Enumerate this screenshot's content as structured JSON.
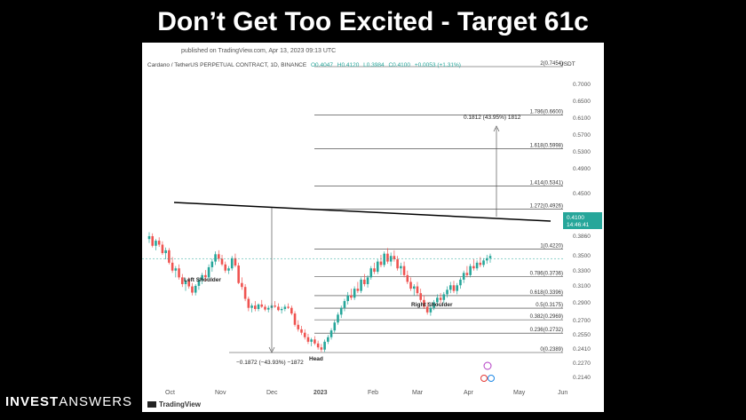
{
  "header": {
    "title": "Don’t Get Too Excited - Target 61c"
  },
  "chart_header": {
    "published": "published on TradingView.com, Apr 13, 2023 09:13 UTC",
    "symbol": "Cardano / TetherUS PERPETUAL CONTRACT, 1D, BINANCE",
    "o": "O0.4047",
    "h": "H0.4120",
    "l": "L0.3984",
    "c": "C0.4100",
    "chg": "+0.0053 (+1.31%)",
    "currency": "USDT"
  },
  "chart_data": {
    "type": "candlestick",
    "x_ticks": [
      "Oct",
      "Nov",
      "Dec",
      "2023",
      "Feb",
      "Mar",
      "Apr",
      "May",
      "Jun"
    ],
    "y_ticks": [
      "0.7000",
      "0.6500",
      "0.6100",
      "0.5700",
      "0.5300",
      "0.4900",
      "0.4500",
      "0.3860",
      "0.3500",
      "0.3300",
      "0.3100",
      "0.2900",
      "0.2700",
      "0.2550",
      "0.2410",
      "0.2270",
      "0.2140"
    ],
    "current_price": "0.4100",
    "countdown": "14:46:41",
    "fib_levels": [
      {
        "label": "2(0.7454)",
        "value": 0.7454
      },
      {
        "label": "1.786(0.6600)",
        "value": 0.66
      },
      {
        "label": "1.618(0.5998)",
        "value": 0.5998
      },
      {
        "label": "1.414(0.5341)",
        "value": 0.5341
      },
      {
        "label": "1.272(0.4926)",
        "value": 0.4926
      },
      {
        "label": "1(0.4220)",
        "value": 0.422
      },
      {
        "label": "0.786(0.3736)",
        "value": 0.3736
      },
      {
        "label": "0.618(0.3396)",
        "value": 0.3396
      },
      {
        "label": "0.5(0.3175)",
        "value": 0.3175
      },
      {
        "label": "0.382(0.2969)",
        "value": 0.2969
      },
      {
        "label": "0.236(0.2732)",
        "value": 0.2732
      },
      {
        "label": "0(0.2389)",
        "value": 0.2389
      }
    ],
    "annotations": {
      "left_shoulder": "Left Shoulder",
      "head": "Head",
      "right_shoulder": "Right Shoulder",
      "measure_down": "−0.1872 (−43.93%) −1872",
      "measure_up": "0.1812 (43.95%) 1812"
    },
    "candles": [
      [
        0.44,
        0.452,
        0.433,
        0.445
      ],
      [
        0.445,
        0.45,
        0.425,
        0.428
      ],
      [
        0.428,
        0.44,
        0.42,
        0.437
      ],
      [
        0.437,
        0.443,
        0.426,
        0.43
      ],
      [
        0.43,
        0.436,
        0.412,
        0.415
      ],
      [
        0.415,
        0.425,
        0.404,
        0.42
      ],
      [
        0.42,
        0.424,
        0.395,
        0.398
      ],
      [
        0.398,
        0.408,
        0.38,
        0.384
      ],
      [
        0.384,
        0.392,
        0.372,
        0.388
      ],
      [
        0.388,
        0.395,
        0.368,
        0.372
      ],
      [
        0.372,
        0.378,
        0.355,
        0.36
      ],
      [
        0.36,
        0.37,
        0.348,
        0.366
      ],
      [
        0.366,
        0.372,
        0.352,
        0.356
      ],
      [
        0.356,
        0.362,
        0.34,
        0.345
      ],
      [
        0.345,
        0.36,
        0.34,
        0.357
      ],
      [
        0.357,
        0.37,
        0.35,
        0.367
      ],
      [
        0.367,
        0.38,
        0.36,
        0.376
      ],
      [
        0.376,
        0.385,
        0.365,
        0.372
      ],
      [
        0.372,
        0.395,
        0.368,
        0.39
      ],
      [
        0.39,
        0.405,
        0.382,
        0.4
      ],
      [
        0.4,
        0.418,
        0.394,
        0.413
      ],
      [
        0.413,
        0.42,
        0.4,
        0.405
      ],
      [
        0.405,
        0.412,
        0.392,
        0.395
      ],
      [
        0.395,
        0.4,
        0.38,
        0.384
      ],
      [
        0.384,
        0.392,
        0.378,
        0.388
      ],
      [
        0.388,
        0.41,
        0.384,
        0.406
      ],
      [
        0.406,
        0.414,
        0.39,
        0.393
      ],
      [
        0.393,
        0.398,
        0.36,
        0.362
      ],
      [
        0.362,
        0.372,
        0.35,
        0.355
      ],
      [
        0.355,
        0.36,
        0.33,
        0.334
      ],
      [
        0.334,
        0.338,
        0.312,
        0.318
      ],
      [
        0.318,
        0.326,
        0.31,
        0.322
      ],
      [
        0.322,
        0.33,
        0.312,
        0.316
      ],
      [
        0.316,
        0.326,
        0.312,
        0.324
      ],
      [
        0.324,
        0.332,
        0.318,
        0.32
      ],
      [
        0.32,
        0.324,
        0.312,
        0.315
      ],
      [
        0.315,
        0.322,
        0.31,
        0.318
      ],
      [
        0.318,
        0.326,
        0.314,
        0.322
      ],
      [
        0.322,
        0.33,
        0.318,
        0.32
      ],
      [
        0.32,
        0.326,
        0.312,
        0.314
      ],
      [
        0.314,
        0.32,
        0.308,
        0.316
      ],
      [
        0.316,
        0.324,
        0.312,
        0.32
      ],
      [
        0.32,
        0.326,
        0.316,
        0.318
      ],
      [
        0.318,
        0.322,
        0.305,
        0.308
      ],
      [
        0.308,
        0.312,
        0.285,
        0.288
      ],
      [
        0.288,
        0.296,
        0.276,
        0.28
      ],
      [
        0.28,
        0.286,
        0.27,
        0.274
      ],
      [
        0.274,
        0.28,
        0.262,
        0.266
      ],
      [
        0.266,
        0.272,
        0.254,
        0.258
      ],
      [
        0.258,
        0.265,
        0.25,
        0.262
      ],
      [
        0.262,
        0.268,
        0.252,
        0.255
      ],
      [
        0.255,
        0.26,
        0.244,
        0.248
      ],
      [
        0.248,
        0.254,
        0.24,
        0.244
      ],
      [
        0.244,
        0.262,
        0.24,
        0.258
      ],
      [
        0.258,
        0.27,
        0.254,
        0.266
      ],
      [
        0.266,
        0.282,
        0.262,
        0.278
      ],
      [
        0.278,
        0.296,
        0.274,
        0.292
      ],
      [
        0.292,
        0.31,
        0.288,
        0.306
      ],
      [
        0.306,
        0.322,
        0.3,
        0.318
      ],
      [
        0.318,
        0.334,
        0.312,
        0.33
      ],
      [
        0.33,
        0.346,
        0.324,
        0.34
      ],
      [
        0.34,
        0.352,
        0.332,
        0.336
      ],
      [
        0.336,
        0.356,
        0.332,
        0.352
      ],
      [
        0.352,
        0.364,
        0.344,
        0.348
      ],
      [
        0.348,
        0.372,
        0.344,
        0.368
      ],
      [
        0.368,
        0.378,
        0.356,
        0.36
      ],
      [
        0.36,
        0.376,
        0.354,
        0.372
      ],
      [
        0.372,
        0.392,
        0.368,
        0.388
      ],
      [
        0.388,
        0.398,
        0.378,
        0.382
      ],
      [
        0.382,
        0.404,
        0.378,
        0.4
      ],
      [
        0.4,
        0.412,
        0.39,
        0.394
      ],
      [
        0.394,
        0.418,
        0.39,
        0.414
      ],
      [
        0.414,
        0.424,
        0.396,
        0.4
      ],
      [
        0.4,
        0.416,
        0.392,
        0.41
      ],
      [
        0.41,
        0.42,
        0.4,
        0.404
      ],
      [
        0.404,
        0.41,
        0.384,
        0.388
      ],
      [
        0.388,
        0.398,
        0.376,
        0.392
      ],
      [
        0.392,
        0.4,
        0.372,
        0.376
      ],
      [
        0.376,
        0.384,
        0.36,
        0.364
      ],
      [
        0.364,
        0.372,
        0.348,
        0.352
      ],
      [
        0.352,
        0.36,
        0.34,
        0.356
      ],
      [
        0.356,
        0.364,
        0.34,
        0.344
      ],
      [
        0.344,
        0.352,
        0.328,
        0.332
      ],
      [
        0.332,
        0.34,
        0.316,
        0.32
      ],
      [
        0.32,
        0.328,
        0.306,
        0.31
      ],
      [
        0.31,
        0.324,
        0.304,
        0.318
      ],
      [
        0.318,
        0.332,
        0.314,
        0.328
      ],
      [
        0.328,
        0.342,
        0.322,
        0.336
      ],
      [
        0.336,
        0.344,
        0.326,
        0.332
      ],
      [
        0.332,
        0.346,
        0.326,
        0.342
      ],
      [
        0.342,
        0.356,
        0.336,
        0.35
      ],
      [
        0.35,
        0.364,
        0.344,
        0.358
      ],
      [
        0.358,
        0.366,
        0.344,
        0.348
      ],
      [
        0.348,
        0.362,
        0.342,
        0.358
      ],
      [
        0.358,
        0.372,
        0.352,
        0.368
      ],
      [
        0.368,
        0.384,
        0.362,
        0.38
      ],
      [
        0.38,
        0.392,
        0.372,
        0.376
      ],
      [
        0.376,
        0.396,
        0.372,
        0.392
      ],
      [
        0.392,
        0.404,
        0.384,
        0.388
      ],
      [
        0.388,
        0.402,
        0.384,
        0.398
      ],
      [
        0.398,
        0.408,
        0.39,
        0.394
      ],
      [
        0.394,
        0.406,
        0.39,
        0.402
      ],
      [
        0.402,
        0.412,
        0.396,
        0.406
      ],
      [
        0.406,
        0.414,
        0.398,
        0.41
      ]
    ]
  },
  "watermark": {
    "brand": "TradingView"
  },
  "footer": {
    "brand_bold": "INVEST",
    "brand_light": "ANSWERS"
  }
}
